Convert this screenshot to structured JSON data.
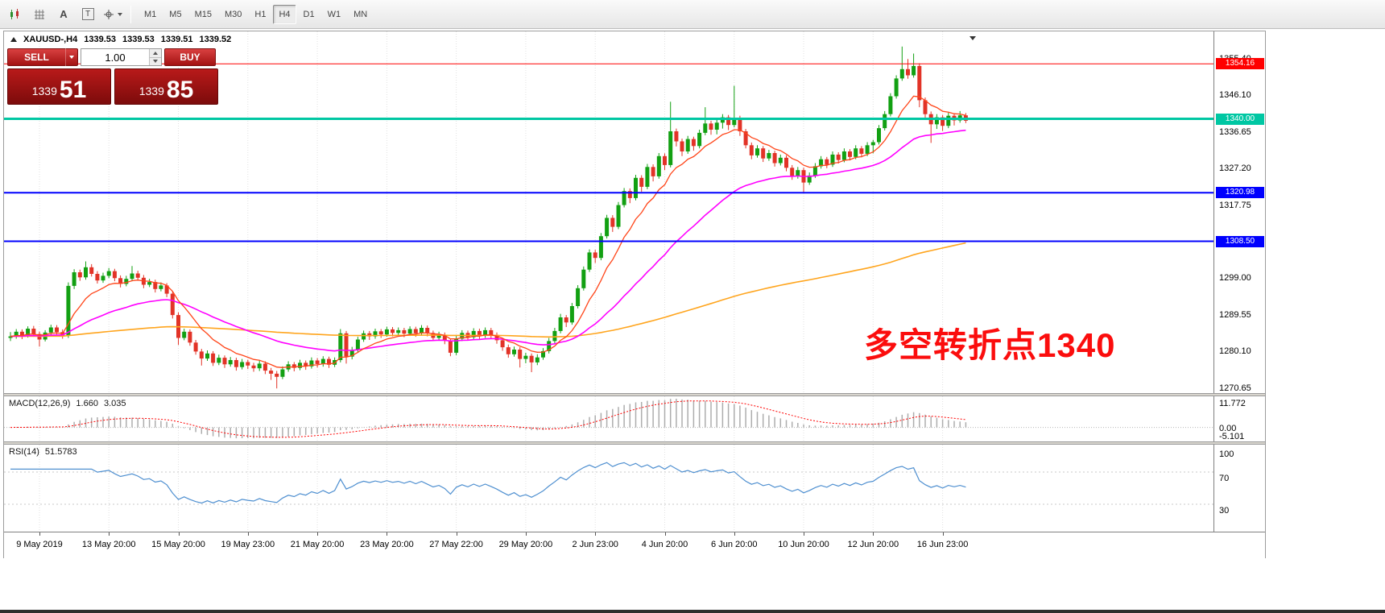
{
  "toolbar": {
    "text_tool_glyph": "A",
    "textbox_tool_glyph": "T",
    "timeframes": [
      "M1",
      "M5",
      "M15",
      "M30",
      "H1",
      "H4",
      "D1",
      "W1",
      "MN"
    ],
    "active_timeframe": "H4"
  },
  "chart": {
    "info": {
      "symbol": "XAUUSD-,H4",
      "open": "1339.53",
      "high": "1339.53",
      "low": "1339.51",
      "close": "1339.52"
    },
    "trade_panel": {
      "sell_label": "SELL",
      "buy_label": "BUY",
      "volume": "1.00",
      "sell_price": {
        "main": "1339",
        "pips": "51"
      },
      "buy_price": {
        "main": "1339",
        "pips": "85"
      }
    },
    "annotation": "多空转折点1340",
    "hlines": [
      {
        "price": 1354.16,
        "badge": "1354.16",
        "color": "#FF0000",
        "width": 1
      },
      {
        "price": 1340.0,
        "badge": "1340.00",
        "color": "#00C7A3",
        "width": 3
      },
      {
        "price": 1320.98,
        "badge": "1320.98",
        "color": "#0000FE",
        "width": 2
      },
      {
        "price": 1308.5,
        "badge": "1308.50",
        "color": "#0000FE",
        "width": 2
      }
    ]
  },
  "axis": {
    "price_ticks": [
      {
        "price": 1355.4,
        "label": "1355.40"
      },
      {
        "price": 1346.1,
        "label": "1346.10"
      },
      {
        "price": 1336.65,
        "label": "1336.65"
      },
      {
        "price": 1327.2,
        "label": "1327.20"
      },
      {
        "price": 1317.75,
        "label": "1317.75"
      },
      {
        "price": 1299.0,
        "label": "1299.00"
      },
      {
        "price": 1289.55,
        "label": "1289.55"
      },
      {
        "price": 1280.1,
        "label": "1280.10"
      },
      {
        "price": 1270.65,
        "label": "1270.65"
      }
    ]
  },
  "macd": {
    "title": "MACD(12,26,9)",
    "value_main": "1.660",
    "value_signal": "3.035",
    "ticks": [
      {
        "v": 11.772,
        "label": "11.772"
      },
      {
        "v": 0,
        "label": "0.00"
      },
      {
        "v": -5.101,
        "label": "-5.101"
      }
    ]
  },
  "rsi": {
    "title": "RSI(14)",
    "value": "51.5783",
    "levels": [
      70,
      30
    ],
    "ticks": [
      {
        "v": 100,
        "label": "100"
      },
      {
        "v": 70,
        "label": "70"
      },
      {
        "v": 30,
        "label": "30"
      }
    ]
  },
  "colors": {
    "candle_up": "#12A012",
    "candle_down": "#E23327",
    "ma_fast": "#FF4519",
    "ma_mid": "#FF00FF",
    "ma_slow": "#FFA51E",
    "macd_hist": "#ADADAD",
    "macd_signal": "#FF0000",
    "rsi": "#4E8FD0",
    "grid": "#E2E2E2",
    "annotation": "#FB0D0D"
  },
  "chart_data": {
    "type": "candlestick",
    "symbol": "XAUUSD",
    "timeframe": "H4",
    "y_range": [
      1269.2,
      1362.5
    ],
    "time_labels": [
      {
        "i": 5,
        "t": "9 May 2019"
      },
      {
        "i": 17,
        "t": "13 May 20:00"
      },
      {
        "i": 29,
        "t": "15 May 20:00"
      },
      {
        "i": 41,
        "t": "19 May 23:00"
      },
      {
        "i": 53,
        "t": "21 May 20:00"
      },
      {
        "i": 65,
        "t": "23 May 20:00"
      },
      {
        "i": 77,
        "t": "27 May 22:00"
      },
      {
        "i": 89,
        "t": "29 May 20:00"
      },
      {
        "i": 101,
        "t": "2 Jun 23:00"
      },
      {
        "i": 113,
        "t": "4 Jun 20:00"
      },
      {
        "i": 125,
        "t": "6 Jun 20:00"
      },
      {
        "i": 137,
        "t": "10 Jun 20:00"
      },
      {
        "i": 149,
        "t": "12 Jun 20:00"
      },
      {
        "i": 161,
        "t": "16 Jun 23:00"
      }
    ],
    "candles": [
      [
        1283.6,
        1285.1,
        1282.8,
        1284.0
      ],
      [
        1284.0,
        1285.9,
        1283.4,
        1285.2
      ],
      [
        1285.2,
        1285.8,
        1283.3,
        1284.1
      ],
      [
        1284.1,
        1286.6,
        1283.7,
        1286.0
      ],
      [
        1286.0,
        1286.7,
        1283.9,
        1284.6
      ],
      [
        1284.6,
        1285.2,
        1281.4,
        1283.2
      ],
      [
        1283.2,
        1285.6,
        1282.7,
        1285.0
      ],
      [
        1285.0,
        1287.0,
        1284.4,
        1286.3
      ],
      [
        1286.3,
        1286.9,
        1284.5,
        1285.1
      ],
      [
        1285.1,
        1285.8,
        1283.4,
        1284.2
      ],
      [
        1284.2,
        1297.9,
        1283.6,
        1297.0
      ],
      [
        1297.0,
        1301.3,
        1296.2,
        1300.5
      ],
      [
        1300.5,
        1301.2,
        1298.3,
        1299.2
      ],
      [
        1299.2,
        1303.3,
        1298.6,
        1301.8
      ],
      [
        1301.8,
        1302.6,
        1299.4,
        1300.1
      ],
      [
        1300.1,
        1300.8,
        1297.6,
        1298.4
      ],
      [
        1298.4,
        1300.4,
        1297.8,
        1299.6
      ],
      [
        1299.6,
        1301.6,
        1299.0,
        1300.8
      ],
      [
        1300.8,
        1301.4,
        1298.2,
        1299.0
      ],
      [
        1299.0,
        1299.7,
        1296.6,
        1297.5
      ],
      [
        1297.5,
        1299.6,
        1296.9,
        1298.8
      ],
      [
        1298.8,
        1302.1,
        1298.2,
        1300.2
      ],
      [
        1300.2,
        1300.9,
        1298.3,
        1299.1
      ],
      [
        1299.1,
        1299.8,
        1296.4,
        1297.3
      ],
      [
        1297.3,
        1298.8,
        1296.7,
        1298.0
      ],
      [
        1298.0,
        1298.6,
        1295.3,
        1296.2
      ],
      [
        1296.2,
        1297.9,
        1295.6,
        1297.1
      ],
      [
        1297.1,
        1297.7,
        1294.1,
        1295.0
      ],
      [
        1295.0,
        1295.6,
        1288.6,
        1289.5
      ],
      [
        1289.5,
        1290.2,
        1281.8,
        1283.6
      ],
      [
        1283.6,
        1286.0,
        1283.0,
        1285.2
      ],
      [
        1285.2,
        1285.8,
        1281.6,
        1282.4
      ],
      [
        1282.4,
        1283.1,
        1279.3,
        1280.1
      ],
      [
        1280.1,
        1280.8,
        1276.5,
        1278.3
      ],
      [
        1278.3,
        1280.4,
        1277.7,
        1279.6
      ],
      [
        1279.6,
        1280.2,
        1276.4,
        1277.2
      ],
      [
        1277.2,
        1279.3,
        1276.6,
        1278.5
      ],
      [
        1278.5,
        1279.1,
        1275.9,
        1276.8
      ],
      [
        1276.8,
        1278.7,
        1276.2,
        1277.9
      ],
      [
        1277.9,
        1278.5,
        1275.2,
        1276.1
      ],
      [
        1276.1,
        1278.2,
        1275.5,
        1277.4
      ],
      [
        1277.4,
        1278.0,
        1275.6,
        1276.5
      ],
      [
        1276.5,
        1277.2,
        1274.9,
        1275.8
      ],
      [
        1275.8,
        1277.8,
        1275.1,
        1277.0
      ],
      [
        1277.0,
        1277.6,
        1274.3,
        1275.2
      ],
      [
        1275.2,
        1275.9,
        1272.8,
        1274.4
      ],
      [
        1274.4,
        1275.1,
        1270.6,
        1273.6
      ],
      [
        1273.6,
        1276.3,
        1273.0,
        1275.5
      ],
      [
        1275.5,
        1277.6,
        1274.9,
        1276.8
      ],
      [
        1276.8,
        1277.4,
        1275.0,
        1275.9
      ],
      [
        1275.9,
        1278.0,
        1275.3,
        1277.2
      ],
      [
        1277.2,
        1277.8,
        1275.4,
        1276.3
      ],
      [
        1276.3,
        1278.6,
        1275.7,
        1277.8
      ],
      [
        1277.8,
        1278.4,
        1276.0,
        1276.9
      ],
      [
        1276.9,
        1278.9,
        1276.2,
        1278.2
      ],
      [
        1278.2,
        1278.8,
        1275.9,
        1276.7
      ],
      [
        1276.7,
        1278.6,
        1276.1,
        1277.9
      ],
      [
        1277.9,
        1285.9,
        1277.3,
        1284.8
      ],
      [
        1284.8,
        1285.4,
        1277.0,
        1278.8
      ],
      [
        1278.8,
        1281.3,
        1278.1,
        1280.5
      ],
      [
        1280.5,
        1283.9,
        1279.9,
        1283.2
      ],
      [
        1283.2,
        1285.5,
        1282.6,
        1284.8
      ],
      [
        1284.8,
        1285.4,
        1283.1,
        1284.0
      ],
      [
        1284.0,
        1286.0,
        1283.4,
        1285.3
      ],
      [
        1285.3,
        1285.9,
        1283.6,
        1284.5
      ],
      [
        1284.5,
        1286.5,
        1283.9,
        1285.8
      ],
      [
        1285.8,
        1286.4,
        1284.0,
        1284.9
      ],
      [
        1284.9,
        1286.3,
        1284.2,
        1285.6
      ],
      [
        1285.6,
        1286.2,
        1283.8,
        1284.7
      ],
      [
        1284.7,
        1286.6,
        1284.1,
        1285.9
      ],
      [
        1285.9,
        1286.5,
        1283.9,
        1284.8
      ],
      [
        1284.8,
        1286.9,
        1284.2,
        1286.2
      ],
      [
        1286.2,
        1286.8,
        1284.0,
        1284.9
      ],
      [
        1284.9,
        1285.5,
        1282.8,
        1283.6
      ],
      [
        1283.6,
        1285.2,
        1283.0,
        1284.4
      ],
      [
        1284.4,
        1285.0,
        1282.0,
        1282.9
      ],
      [
        1282.9,
        1283.5,
        1278.9,
        1279.8
      ],
      [
        1279.8,
        1284.1,
        1279.2,
        1283.4
      ],
      [
        1283.4,
        1285.6,
        1282.8,
        1284.9
      ],
      [
        1284.9,
        1285.5,
        1283.0,
        1283.8
      ],
      [
        1283.8,
        1286.1,
        1283.2,
        1285.4
      ],
      [
        1285.4,
        1286.0,
        1283.3,
        1284.2
      ],
      [
        1284.2,
        1286.3,
        1283.6,
        1285.6
      ],
      [
        1285.6,
        1286.2,
        1283.5,
        1284.4
      ],
      [
        1284.4,
        1285.0,
        1282.1,
        1283.0
      ],
      [
        1283.0,
        1283.6,
        1280.3,
        1281.2
      ],
      [
        1281.2,
        1281.9,
        1278.5,
        1279.4
      ],
      [
        1279.4,
        1281.4,
        1278.8,
        1280.6
      ],
      [
        1280.6,
        1281.2,
        1276.0,
        1278.2
      ],
      [
        1278.2,
        1279.8,
        1277.1,
        1279.0
      ],
      [
        1279.0,
        1279.6,
        1274.8,
        1277.3
      ],
      [
        1277.3,
        1279.4,
        1276.6,
        1278.6
      ],
      [
        1278.6,
        1281.0,
        1278.0,
        1280.2
      ],
      [
        1280.2,
        1283.6,
        1279.6,
        1282.8
      ],
      [
        1282.8,
        1286.2,
        1282.2,
        1285.4
      ],
      [
        1285.4,
        1289.8,
        1284.8,
        1288.9
      ],
      [
        1288.9,
        1289.5,
        1286.4,
        1287.6
      ],
      [
        1287.6,
        1292.6,
        1287.0,
        1291.8
      ],
      [
        1291.8,
        1297.2,
        1291.2,
        1296.4
      ],
      [
        1296.4,
        1302.0,
        1295.8,
        1301.2
      ],
      [
        1301.2,
        1306.4,
        1300.6,
        1305.6
      ],
      [
        1305.6,
        1306.3,
        1302.9,
        1304.2
      ],
      [
        1304.2,
        1310.6,
        1303.6,
        1309.8
      ],
      [
        1309.8,
        1315.3,
        1309.2,
        1314.5
      ],
      [
        1314.5,
        1315.2,
        1310.9,
        1312.2
      ],
      [
        1312.2,
        1318.6,
        1311.6,
        1317.8
      ],
      [
        1317.8,
        1322.2,
        1317.2,
        1321.4
      ],
      [
        1321.4,
        1322.1,
        1318.3,
        1319.6
      ],
      [
        1319.6,
        1325.6,
        1319.0,
        1324.8
      ],
      [
        1324.8,
        1325.5,
        1321.2,
        1322.5
      ],
      [
        1322.5,
        1328.4,
        1321.9,
        1327.6
      ],
      [
        1327.6,
        1328.3,
        1323.9,
        1325.2
      ],
      [
        1325.2,
        1331.2,
        1324.6,
        1330.4
      ],
      [
        1330.4,
        1331.1,
        1326.8,
        1328.1
      ],
      [
        1328.1,
        1344.4,
        1327.5,
        1336.8
      ],
      [
        1336.8,
        1337.5,
        1332.9,
        1334.2
      ],
      [
        1334.2,
        1334.9,
        1330.4,
        1331.6
      ],
      [
        1331.6,
        1335.6,
        1331.0,
        1334.8
      ],
      [
        1334.8,
        1335.4,
        1331.8,
        1333.0
      ],
      [
        1333.0,
        1337.2,
        1332.4,
        1336.4
      ],
      [
        1336.4,
        1343.0,
        1335.8,
        1338.8
      ],
      [
        1338.8,
        1339.5,
        1335.9,
        1337.2
      ],
      [
        1337.2,
        1339.8,
        1336.0,
        1339.0
      ],
      [
        1339.0,
        1341.2,
        1337.5,
        1340.4
      ],
      [
        1340.4,
        1341.0,
        1337.1,
        1338.4
      ],
      [
        1338.4,
        1348.5,
        1337.8,
        1340.2
      ],
      [
        1340.2,
        1340.8,
        1335.6,
        1336.8
      ],
      [
        1336.8,
        1337.4,
        1332.4,
        1333.2
      ],
      [
        1333.2,
        1333.9,
        1329.6,
        1330.6
      ],
      [
        1330.6,
        1333.2,
        1330.0,
        1332.4
      ],
      [
        1332.4,
        1333.0,
        1328.9,
        1329.8
      ],
      [
        1329.8,
        1332.0,
        1329.2,
        1331.2
      ],
      [
        1331.2,
        1331.8,
        1327.7,
        1328.6
      ],
      [
        1328.6,
        1330.8,
        1328.0,
        1330.0
      ],
      [
        1330.0,
        1330.6,
        1326.5,
        1327.4
      ],
      [
        1327.4,
        1328.1,
        1324.3,
        1325.2
      ],
      [
        1325.2,
        1327.6,
        1324.6,
        1326.8
      ],
      [
        1326.8,
        1327.4,
        1320.9,
        1323.6
      ],
      [
        1323.6,
        1326.2,
        1323.0,
        1325.4
      ],
      [
        1325.4,
        1328.6,
        1324.8,
        1327.8
      ],
      [
        1327.8,
        1330.4,
        1327.2,
        1329.6
      ],
      [
        1329.6,
        1330.2,
        1327.3,
        1328.2
      ],
      [
        1328.2,
        1331.6,
        1327.6,
        1330.8
      ],
      [
        1330.8,
        1331.4,
        1328.5,
        1329.4
      ],
      [
        1329.4,
        1332.4,
        1328.8,
        1331.6
      ],
      [
        1331.6,
        1332.2,
        1329.3,
        1330.2
      ],
      [
        1330.2,
        1333.2,
        1329.6,
        1332.4
      ],
      [
        1332.4,
        1333.0,
        1330.1,
        1331.0
      ],
      [
        1331.0,
        1334.0,
        1330.4,
        1333.2
      ],
      [
        1333.2,
        1334.6,
        1331.1,
        1334.0
      ],
      [
        1334.0,
        1338.4,
        1333.4,
        1337.6
      ],
      [
        1337.6,
        1342.0,
        1337.0,
        1341.2
      ],
      [
        1341.2,
        1346.6,
        1340.6,
        1345.8
      ],
      [
        1345.8,
        1351.2,
        1345.2,
        1350.4
      ],
      [
        1350.4,
        1358.6,
        1349.8,
        1352.8
      ],
      [
        1352.8,
        1355.4,
        1350.3,
        1351.2
      ],
      [
        1351.2,
        1356.8,
        1350.6,
        1353.6
      ],
      [
        1353.6,
        1354.3,
        1343.0,
        1344.8
      ],
      [
        1344.8,
        1345.5,
        1340.2,
        1341.2
      ],
      [
        1341.2,
        1341.9,
        1333.8,
        1338.6
      ],
      [
        1338.6,
        1341.2,
        1337.4,
        1340.4
      ],
      [
        1340.4,
        1341.0,
        1336.9,
        1338.2
      ],
      [
        1338.2,
        1341.6,
        1337.6,
        1340.8
      ],
      [
        1340.8,
        1341.4,
        1338.3,
        1339.6
      ],
      [
        1339.6,
        1342.0,
        1339.0,
        1340.9
      ],
      [
        1340.9,
        1341.5,
        1338.9,
        1339.5
      ]
    ]
  }
}
